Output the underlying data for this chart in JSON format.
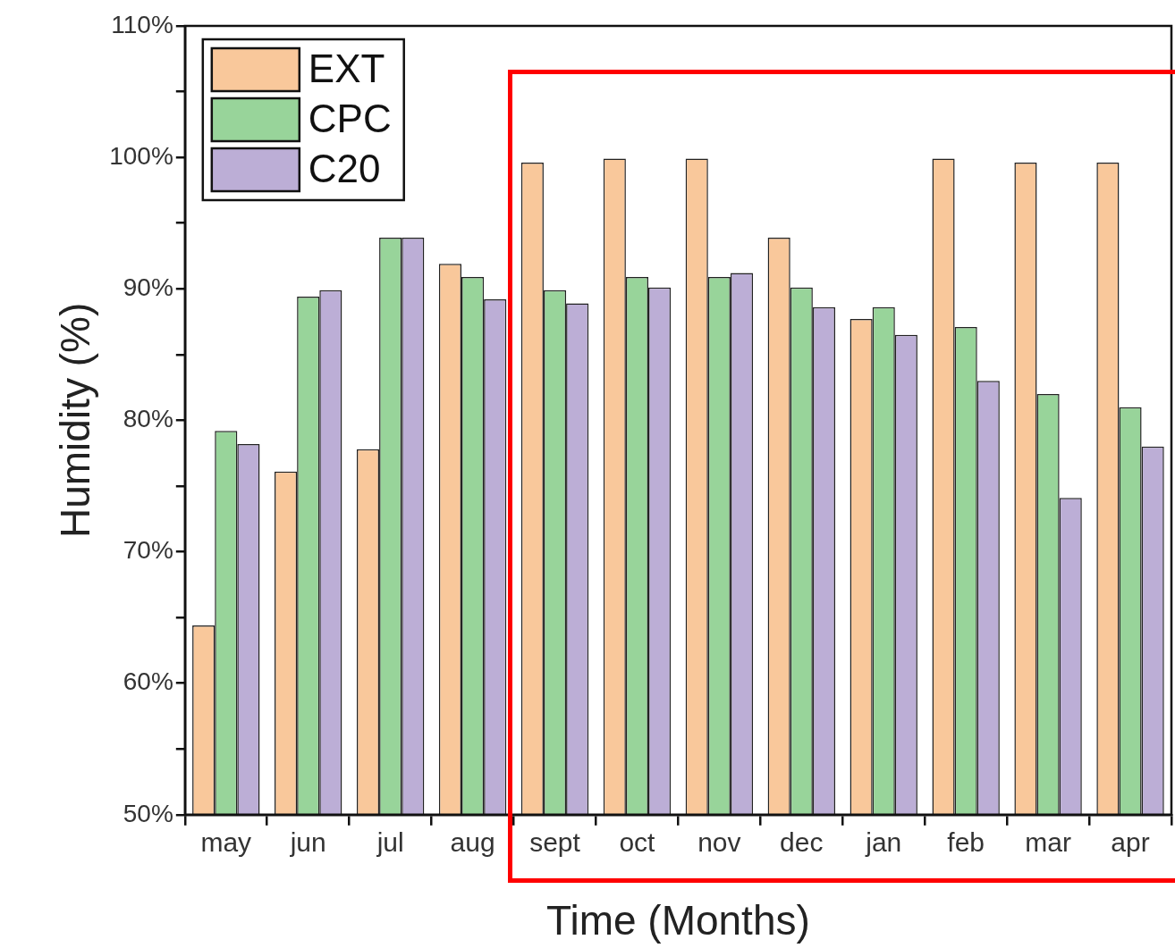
{
  "chart_data": {
    "type": "bar",
    "xlabel": "Time (Months)",
    "ylabel": "Humidity (%)",
    "categories": [
      "may",
      "jun",
      "jul",
      "aug",
      "sept",
      "oct",
      "nov",
      "dec",
      "jan",
      "feb",
      "mar",
      "apr"
    ],
    "series": [
      {
        "name": "EXT",
        "color": "#f9c89b",
        "values": [
          64.4,
          76.1,
          77.8,
          91.9,
          99.6,
          99.9,
          99.9,
          93.9,
          87.7,
          99.9,
          99.6,
          99.6
        ]
      },
      {
        "name": "CPC",
        "color": "#98d49a",
        "values": [
          79.2,
          89.4,
          93.9,
          90.9,
          89.9,
          90.9,
          90.9,
          90.1,
          88.6,
          87.1,
          82.0,
          81.0
        ]
      },
      {
        "name": "C20",
        "color": "#bcaed6",
        "values": [
          78.2,
          89.9,
          93.9,
          89.2,
          88.9,
          90.1,
          91.2,
          88.6,
          86.5,
          83.0,
          74.1,
          78.0
        ]
      }
    ],
    "ylim": [
      50,
      110
    ],
    "yticks": [
      {
        "value": 50,
        "label": "50%"
      },
      {
        "value": 55,
        "label": null
      },
      {
        "value": 60,
        "label": "60%"
      },
      {
        "value": 65,
        "label": null
      },
      {
        "value": 70,
        "label": "70%"
      },
      {
        "value": 75,
        "label": null
      },
      {
        "value": 80,
        "label": "80%"
      },
      {
        "value": 85,
        "label": null
      },
      {
        "value": 90,
        "label": "90%"
      },
      {
        "value": 95,
        "label": null
      },
      {
        "value": 100,
        "label": "100%"
      },
      {
        "value": 105,
        "label": null
      },
      {
        "value": 110,
        "label": "110%"
      }
    ],
    "legend": "top left"
  }
}
